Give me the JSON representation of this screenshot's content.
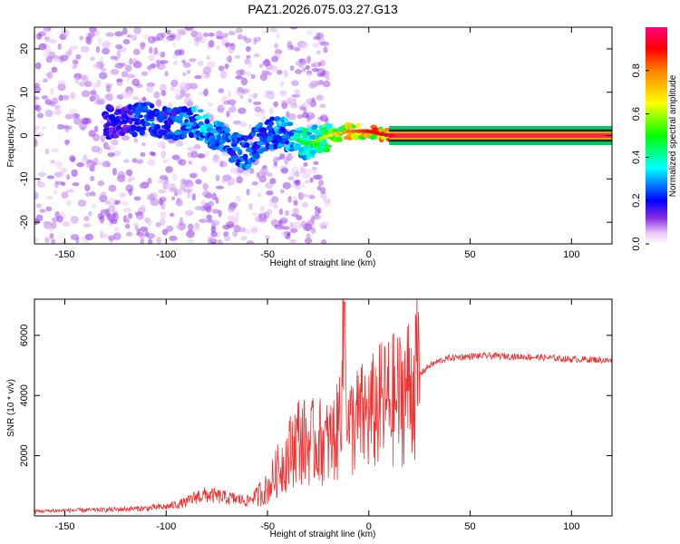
{
  "title": "PAZ1.2026.075.03.27.G13",
  "chart_data": [
    {
      "type": "heatmap",
      "title": "PAZ1.2026.075.03.27.G13",
      "xlabel": "Height of straight line (km)",
      "ylabel": "Frequency (Hz)",
      "xlim": [
        -165,
        120
      ],
      "ylim": [
        -25,
        25
      ],
      "xticks": [
        -150,
        -100,
        -50,
        0,
        50,
        100
      ],
      "yticks": [
        -20,
        -10,
        0,
        10,
        20
      ],
      "colorbar": {
        "label": "Normalized spectral amplitude",
        "range": [
          0,
          1
        ],
        "ticks": [
          0.0,
          0.2,
          0.4,
          0.6,
          0.8
        ]
      },
      "ridge": {
        "x": [
          -120,
          -110,
          -100,
          -90,
          -80,
          -70,
          -60,
          -50,
          -40,
          -30,
          -20,
          -10,
          0,
          10,
          20,
          40,
          60,
          80,
          100,
          120
        ],
        "freq_hz": [
          3,
          4,
          3,
          3,
          2,
          -2,
          -4,
          1,
          0,
          -2,
          0,
          1,
          1,
          0,
          0,
          0,
          0,
          0,
          0,
          0
        ],
        "amplitude": [
          0.2,
          0.3,
          0.25,
          0.3,
          0.35,
          0.3,
          0.3,
          0.3,
          0.35,
          0.45,
          0.6,
          0.75,
          0.85,
          0.9,
          0.95,
          0.95,
          0.95,
          0.95,
          0.95,
          0.95
        ]
      }
    },
    {
      "type": "line",
      "xlabel": "Height of straight line (km)",
      "ylabel": "SNR (10 * v/v)",
      "xlim": [
        -165,
        120
      ],
      "ylim": [
        0,
        7200
      ],
      "xticks": [
        -150,
        -100,
        -50,
        0,
        50,
        100
      ],
      "yticks": [
        2000,
        4000,
        6000
      ],
      "color": "#ee3333",
      "series": [
        {
          "name": "SNR",
          "x": [
            -165,
            -150,
            -130,
            -110,
            -100,
            -90,
            -85,
            -80,
            -70,
            -60,
            -50,
            -45,
            -40,
            -35,
            -30,
            -25,
            -20,
            -15,
            -12,
            -10,
            -5,
            0,
            5,
            10,
            15,
            20,
            25,
            30,
            35,
            40,
            50,
            60,
            70,
            80,
            90,
            100,
            110,
            120
          ],
          "y": [
            150,
            180,
            200,
            250,
            300,
            450,
            650,
            700,
            600,
            500,
            900,
            1500,
            2000,
            2600,
            2400,
            2500,
            2400,
            2800,
            7100,
            2900,
            3200,
            3300,
            3600,
            3800,
            3900,
            4300,
            4700,
            5000,
            5150,
            5250,
            5300,
            5320,
            5300,
            5280,
            5250,
            5200,
            5200,
            5150
          ]
        }
      ]
    }
  ]
}
